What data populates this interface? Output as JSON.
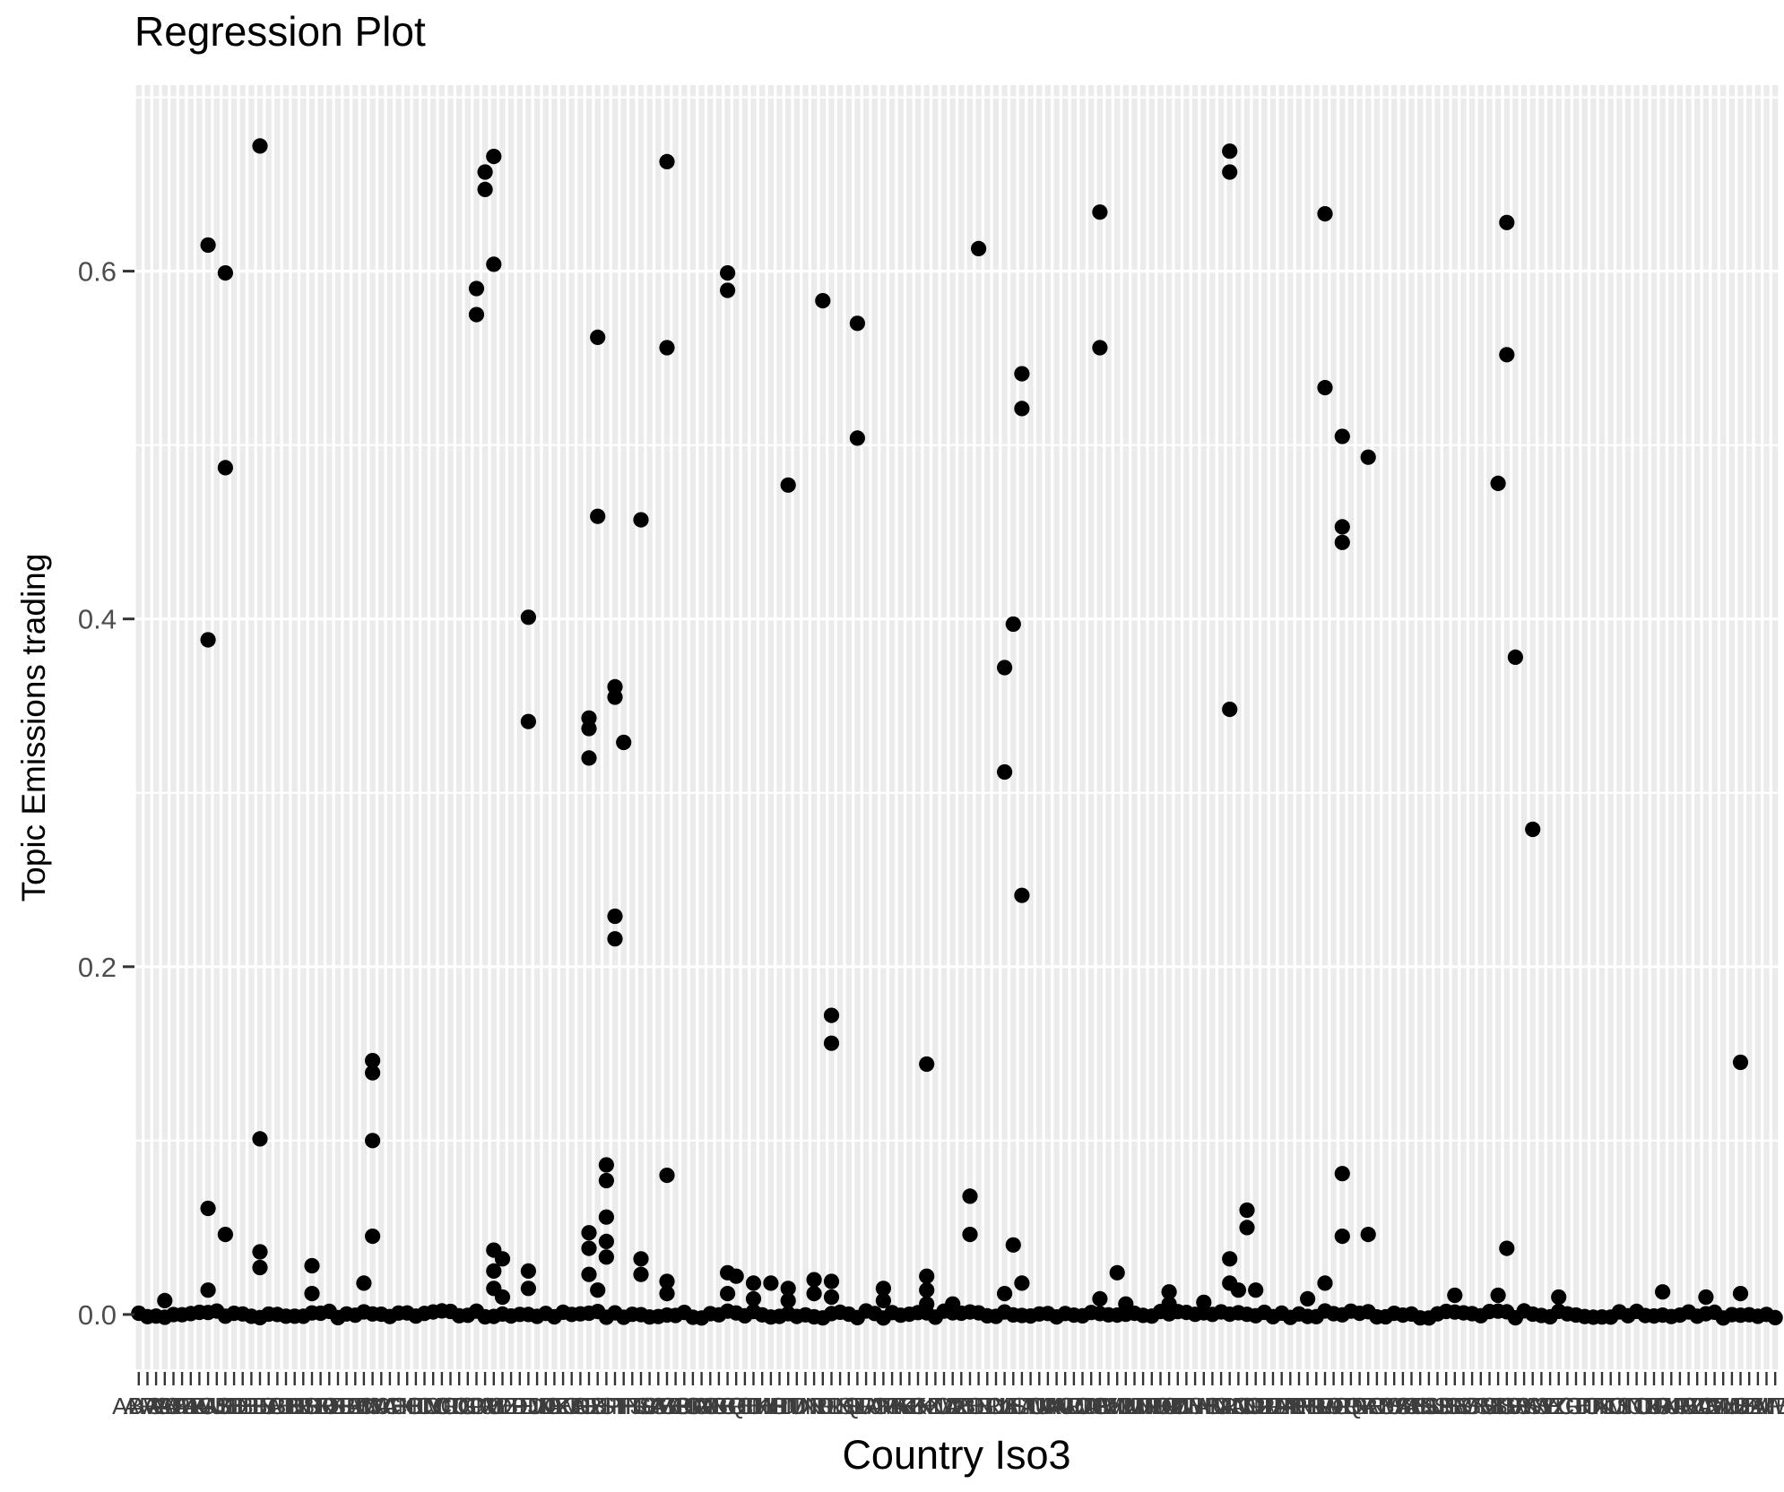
{
  "figure": {
    "title": "Regression Plot"
  },
  "chart_data": {
    "type": "scatter",
    "title": "Regression Plot",
    "xlabel": "Country Iso3",
    "ylabel": "Topic Emissions trading",
    "legend": "none",
    "grid": {
      "horizontal_gridlines": "white",
      "vertical_stripes": true,
      "stripe_color": "#EBEBEB"
    },
    "y_axis": {
      "ticks": [
        0.0,
        0.2,
        0.4,
        0.6
      ],
      "tick_labels": [
        "0.0",
        "0.2",
        "0.4",
        "0.6"
      ],
      "minor_ticks": [
        0.1,
        0.3,
        0.5,
        0.7
      ],
      "range": [
        -0.0315,
        0.707
      ]
    },
    "x_axis": {
      "note": "~190 ISO3 country codes, labels heavily overlapping and illegible",
      "categories": [
        "ABW",
        "AFG",
        "AGO",
        "ALB",
        "AND",
        "ARE",
        "ARG",
        "ARM",
        "AUS",
        "AUT",
        "AZE",
        "BDI",
        "BEL",
        "BEN",
        "BFA",
        "BGD",
        "BGR",
        "BHR",
        "BHS",
        "BIH",
        "BLR",
        "BLZ",
        "BOL",
        "BRA",
        "BRB",
        "BRN",
        "BTN",
        "BWA",
        "CAF",
        "CAN",
        "CHE",
        "CHL",
        "CHN",
        "CIV",
        "CMR",
        "COD",
        "COG",
        "COL",
        "COM",
        "CPV",
        "CRI",
        "CUB",
        "CYP",
        "CZE",
        "DEU",
        "DJI",
        "DMA",
        "DNK",
        "DOM",
        "DZA",
        "ECU",
        "EGY",
        "ERI",
        "ESP",
        "EST",
        "ETH",
        "FIN",
        "FJI",
        "FRA",
        "FSM",
        "GAB",
        "GBR",
        "GEO",
        "GHA",
        "GIN",
        "GMB",
        "GNB",
        "GNQ",
        "GRC",
        "GRD",
        "GTM",
        "GUY",
        "HKG",
        "HND",
        "HRV",
        "HTI",
        "HUN",
        "IDN",
        "IND",
        "IRL",
        "IRN",
        "IRQ",
        "ISL",
        "ISR",
        "ITA",
        "JAM",
        "JOR",
        "JPN",
        "KAZ",
        "KEN",
        "KGZ",
        "KHM",
        "KNA",
        "KOR",
        "KWT",
        "LAO",
        "LBN",
        "LBR",
        "LBY",
        "LCA",
        "LIE",
        "LKA",
        "LSO",
        "LTU",
        "LUX",
        "LVA",
        "MAR",
        "MCO",
        "MDA",
        "MDG",
        "MDV",
        "MEX",
        "MKD",
        "MLI",
        "MLT",
        "MMR",
        "MNE",
        "MNG",
        "MOZ",
        "MRT",
        "MUS",
        "MWI",
        "MYS",
        "NAM",
        "NER",
        "NGA",
        "NIC",
        "NLD",
        "NOR",
        "NPL",
        "NZL",
        "OMN",
        "PAK",
        "PAN",
        "PER",
        "PHL",
        "PLW",
        "PNG",
        "POL",
        "PRT",
        "PRY",
        "PSE",
        "QAT",
        "ROU",
        "RUS",
        "RWA",
        "SAU",
        "SDN",
        "SEN",
        "SGP",
        "SLB",
        "SLE",
        "SLV",
        "SMR",
        "SOM",
        "SRB",
        "SSD",
        "STP",
        "SUR",
        "SVK",
        "SVN",
        "SWE",
        "SWZ",
        "SYC",
        "SYR",
        "TCD",
        "TGO",
        "THA",
        "TJK",
        "TKM",
        "TLS",
        "TON",
        "TTO",
        "TUN",
        "TUR",
        "TZA",
        "UGA",
        "UKR",
        "URY",
        "USA",
        "UZB",
        "VCT",
        "VEN",
        "VNM",
        "VUT",
        "WSM",
        "YEM",
        "ZAF",
        "ZMB",
        "ZWE"
      ]
    },
    "baseline": {
      "description": "every country has at least one observation at ~0.0 forming a solid black band",
      "value": 0.0
    },
    "points": [
      [
        14,
        0.672
      ],
      [
        8,
        0.615
      ],
      [
        10,
        0.599
      ],
      [
        41,
        0.666
      ],
      [
        40,
        0.657
      ],
      [
        40,
        0.647
      ],
      [
        41,
        0.604
      ],
      [
        39,
        0.59
      ],
      [
        39,
        0.575
      ],
      [
        61,
        0.663
      ],
      [
        53,
        0.562
      ],
      [
        61,
        0.556
      ],
      [
        10,
        0.487
      ],
      [
        8,
        0.388
      ],
      [
        68,
        0.599
      ],
      [
        68,
        0.589
      ],
      [
        79,
        0.583
      ],
      [
        83,
        0.57
      ],
      [
        83,
        0.504
      ],
      [
        97,
        0.613
      ],
      [
        102,
        0.541
      ],
      [
        102,
        0.521
      ],
      [
        111,
        0.634
      ],
      [
        111,
        0.556
      ],
      [
        126,
        0.669
      ],
      [
        126,
        0.657
      ],
      [
        126,
        0.348
      ],
      [
        137,
        0.633
      ],
      [
        137,
        0.533
      ],
      [
        139,
        0.505
      ],
      [
        142,
        0.493
      ],
      [
        139,
        0.453
      ],
      [
        139,
        0.444
      ],
      [
        139,
        0.081
      ],
      [
        139,
        0.045
      ],
      [
        142,
        0.046
      ],
      [
        158,
        0.628
      ],
      [
        158,
        0.552
      ],
      [
        157,
        0.478
      ],
      [
        159,
        0.378
      ],
      [
        158,
        0.038
      ],
      [
        161,
        0.279
      ],
      [
        101,
        0.397
      ],
      [
        100,
        0.372
      ],
      [
        100,
        0.312
      ],
      [
        102,
        0.241
      ],
      [
        53,
        0.459
      ],
      [
        58,
        0.457
      ],
      [
        45,
        0.401
      ],
      [
        45,
        0.341
      ],
      [
        55,
        0.361
      ],
      [
        55,
        0.355
      ],
      [
        52,
        0.343
      ],
      [
        52,
        0.337
      ],
      [
        52,
        0.32
      ],
      [
        56,
        0.329
      ],
      [
        75,
        0.477
      ],
      [
        55,
        0.229
      ],
      [
        55,
        0.216
      ],
      [
        27,
        0.146
      ],
      [
        27,
        0.139
      ],
      [
        14,
        0.101
      ],
      [
        27,
        0.1
      ],
      [
        27,
        0.045
      ],
      [
        8,
        0.061
      ],
      [
        10,
        0.046
      ],
      [
        14,
        0.036
      ],
      [
        14,
        0.027
      ],
      [
        20,
        0.028
      ],
      [
        20,
        0.012
      ],
      [
        26,
        0.018
      ],
      [
        41,
        0.037
      ],
      [
        42,
        0.032
      ],
      [
        41,
        0.025
      ],
      [
        41,
        0.015
      ],
      [
        42,
        0.01
      ],
      [
        45,
        0.025
      ],
      [
        45,
        0.015
      ],
      [
        52,
        0.047
      ],
      [
        52,
        0.038
      ],
      [
        52,
        0.023
      ],
      [
        53,
        0.014
      ],
      [
        54,
        0.086
      ],
      [
        54,
        0.077
      ],
      [
        54,
        0.056
      ],
      [
        54,
        0.042
      ],
      [
        54,
        0.033
      ],
      [
        58,
        0.032
      ],
      [
        58,
        0.023
      ],
      [
        61,
        0.08
      ],
      [
        61,
        0.019
      ],
      [
        61,
        0.012
      ],
      [
        80,
        0.172
      ],
      [
        80,
        0.156
      ],
      [
        91,
        0.144
      ],
      [
        96,
        0.068
      ],
      [
        96,
        0.046
      ],
      [
        101,
        0.04
      ],
      [
        102,
        0.018
      ],
      [
        68,
        0.024
      ],
      [
        69,
        0.022
      ],
      [
        68,
        0.012
      ],
      [
        71,
        0.018
      ],
      [
        71,
        0.009
      ],
      [
        73,
        0.018
      ],
      [
        75,
        0.015
      ],
      [
        75,
        0.008
      ],
      [
        78,
        0.02
      ],
      [
        78,
        0.012
      ],
      [
        80,
        0.019
      ],
      [
        80,
        0.01
      ],
      [
        86,
        0.015
      ],
      [
        86,
        0.008
      ],
      [
        91,
        0.022
      ],
      [
        91,
        0.014
      ],
      [
        91,
        0.006
      ],
      [
        94,
        0.006
      ],
      [
        100,
        0.012
      ],
      [
        111,
        0.009
      ],
      [
        113,
        0.024
      ],
      [
        114,
        0.006
      ],
      [
        119,
        0.013
      ],
      [
        119,
        0.006
      ],
      [
        123,
        0.007
      ],
      [
        126,
        0.032
      ],
      [
        126,
        0.018
      ],
      [
        127,
        0.014
      ],
      [
        128,
        0.06
      ],
      [
        128,
        0.05
      ],
      [
        185,
        0.145
      ],
      [
        185,
        0.012
      ],
      [
        129,
        0.014
      ],
      [
        135,
        0.009
      ],
      [
        137,
        0.018
      ],
      [
        152,
        0.011
      ],
      [
        157,
        0.011
      ],
      [
        164,
        0.01
      ],
      [
        176,
        0.013
      ],
      [
        181,
        0.01
      ],
      [
        3,
        0.008
      ],
      [
        8,
        0.014
      ]
    ],
    "colors": {
      "point": "#000000",
      "panel_stripe": "#EBEBEB",
      "grid_line": "#FFFFFF",
      "y_tick_label": "#4D4D4D",
      "x_tick_label": "#3D3D3D",
      "axis_tick": "#333333",
      "title": "#000000",
      "background": "#FFFFFF"
    }
  }
}
